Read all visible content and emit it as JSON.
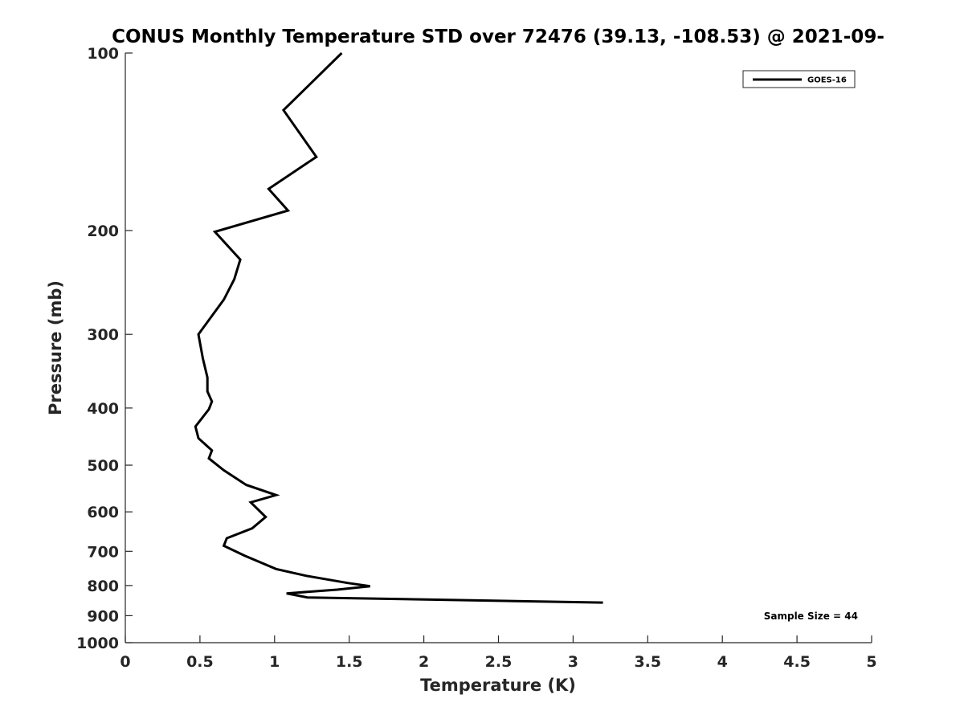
{
  "chart_data": {
    "type": "line",
    "title": "CONUS Monthly Temperature STD over 72476 (39.13, -108.53) @ 2021-09-",
    "xlabel": "Temperature (K)",
    "ylabel": "Pressure (mb)",
    "xlim": [
      0,
      5
    ],
    "ylim": [
      100,
      1000
    ],
    "y_scale": "log",
    "y_reversed": true,
    "x_ticks": [
      0,
      0.5,
      1,
      1.5,
      2,
      2.5,
      3,
      3.5,
      4,
      4.5,
      5
    ],
    "x_tick_labels": [
      "0",
      "0.5",
      "1",
      "1.5",
      "2",
      "2.5",
      "3",
      "3.5",
      "4",
      "4.5",
      "5"
    ],
    "y_ticks": [
      100,
      200,
      300,
      400,
      500,
      600,
      700,
      800,
      900,
      1000
    ],
    "y_tick_labels": [
      "100",
      "200",
      "300",
      "400",
      "500",
      "600",
      "700",
      "800",
      "900",
      "1000"
    ],
    "grid": false,
    "legend_position": "top-right",
    "annotation": "Sample Size = 44",
    "series": [
      {
        "name": "GOES-16",
        "color": "#000000",
        "points": [
          [
            1.45,
            100
          ],
          [
            1.06,
            125
          ],
          [
            1.28,
            150
          ],
          [
            0.96,
            170
          ],
          [
            1.09,
            185
          ],
          [
            0.6,
            201
          ],
          [
            0.77,
            224
          ],
          [
            0.73,
            242
          ],
          [
            0.66,
            262
          ],
          [
            0.49,
            300
          ],
          [
            0.52,
            330
          ],
          [
            0.55,
            355
          ],
          [
            0.55,
            375
          ],
          [
            0.58,
            390
          ],
          [
            0.56,
            402
          ],
          [
            0.47,
            430
          ],
          [
            0.49,
            450
          ],
          [
            0.58,
            472
          ],
          [
            0.56,
            487
          ],
          [
            0.66,
            510
          ],
          [
            0.81,
            540
          ],
          [
            1.01,
            562
          ],
          [
            0.84,
            578
          ],
          [
            0.94,
            612
          ],
          [
            0.85,
            640
          ],
          [
            0.68,
            665
          ],
          [
            0.66,
            685
          ],
          [
            0.8,
            712
          ],
          [
            1.01,
            750
          ],
          [
            1.21,
            770
          ],
          [
            1.49,
            792
          ],
          [
            1.64,
            802
          ],
          [
            1.42,
            813
          ],
          [
            1.08,
            825
          ],
          [
            1.22,
            838
          ],
          [
            3.2,
            855
          ]
        ]
      }
    ]
  }
}
